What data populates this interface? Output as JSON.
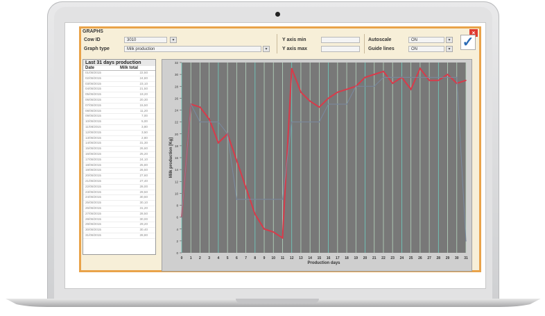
{
  "window": {
    "title": "GRAPHS",
    "close_icon": "close-icon"
  },
  "header": {
    "cow_id_label": "Cow ID",
    "cow_id_value": "3010",
    "graph_type_label": "Graph type",
    "graph_type_value": "Milk production",
    "y_axis_min_label": "Y axis min",
    "y_axis_min_value": "",
    "y_axis_max_label": "Y axis max",
    "y_axis_max_value": "",
    "autoscale_label": "Autoscale",
    "autoscale_value": "ON",
    "guide_lines_label": "Guide lines",
    "guide_lines_value": "ON",
    "confirm_icon": "check-icon"
  },
  "list": {
    "title": "Last 31 days production",
    "col_date": "Date",
    "col_total": "Milk total",
    "rows": [
      {
        "date": "01/08/2015",
        "total": "22,50"
      },
      {
        "date": "02/08/2015",
        "total": "24,80"
      },
      {
        "date": "03/08/2015",
        "total": "23,10"
      },
      {
        "date": "04/08/2015",
        "total": "21,50"
      },
      {
        "date": "05/08/2015",
        "total": "19,20"
      },
      {
        "date": "06/08/2015",
        "total": "20,30"
      },
      {
        "date": "07/08/2015",
        "total": "15,50"
      },
      {
        "date": "08/08/2015",
        "total": "11,20"
      },
      {
        "date": "09/08/2015",
        "total": "7,00"
      },
      {
        "date": "10/08/2015",
        "total": "5,00"
      },
      {
        "date": "11/08/2015",
        "total": "3,80"
      },
      {
        "date": "12/08/2015",
        "total": "3,50"
      },
      {
        "date": "13/08/2015",
        "total": "2,80"
      },
      {
        "date": "14/08/2015",
        "total": "31,30"
      },
      {
        "date": "15/08/2015",
        "total": "26,60"
      },
      {
        "date": "16/08/2015",
        "total": "25,20"
      },
      {
        "date": "17/08/2015",
        "total": "24,10"
      },
      {
        "date": "18/08/2015",
        "total": "25,80"
      },
      {
        "date": "19/08/2015",
        "total": "26,50"
      },
      {
        "date": "20/08/2015",
        "total": "27,60"
      },
      {
        "date": "21/08/2015",
        "total": "27,40"
      },
      {
        "date": "22/08/2015",
        "total": "28,00"
      },
      {
        "date": "23/08/2015",
        "total": "29,50"
      },
      {
        "date": "24/08/2015",
        "total": "30,60"
      },
      {
        "date": "25/08/2015",
        "total": "30,10"
      },
      {
        "date": "26/08/2015",
        "total": "31,20"
      },
      {
        "date": "27/08/2015",
        "total": "28,50"
      },
      {
        "date": "28/08/2015",
        "total": "30,00"
      },
      {
        "date": "29/08/2015",
        "total": "29,20"
      },
      {
        "date": "30/08/2015",
        "total": "30,40"
      },
      {
        "date": "31/08/2015",
        "total": "28,80"
      }
    ]
  },
  "chart_data": {
    "type": "line",
    "xlabel": "Production days",
    "ylabel": "Milk production [Kg]",
    "x": [
      0,
      1,
      2,
      3,
      4,
      5,
      6,
      7,
      8,
      9,
      10,
      11,
      12,
      13,
      14,
      15,
      16,
      17,
      18,
      19,
      20,
      21,
      22,
      23,
      24,
      25,
      26,
      27,
      28,
      29,
      30,
      31
    ],
    "xlim": [
      0,
      31
    ],
    "ylim": [
      0,
      32
    ],
    "yticks": [
      0,
      2,
      4,
      6,
      8,
      10,
      12,
      14,
      16,
      18,
      20,
      22,
      24,
      26,
      28,
      30,
      32
    ],
    "grid": true,
    "series": [
      {
        "values": [
          6.0,
          25.0,
          24.5,
          22.5,
          18.5,
          20.0,
          15.5,
          11.0,
          6.5,
          4.0,
          3.5,
          2.5,
          31.0,
          27.0,
          25.5,
          24.5,
          26.0,
          27.0,
          27.5,
          28.0,
          29.5,
          30.0,
          30.5,
          28.5,
          29.5,
          27.5,
          31.0,
          29.0,
          29.0,
          30.0,
          28.5,
          29.0
        ],
        "color": "#d93a4a"
      },
      {
        "values": [
          6.0,
          25.0,
          22.0,
          22.0,
          22.0,
          20.0,
          9.0,
          9.0,
          9.0,
          9.0,
          9.0,
          9.0,
          22.0,
          22.0,
          22.0,
          22.0,
          25.0,
          25.0,
          25.0,
          28.0,
          28.0,
          28.0,
          29.5,
          29.5,
          29.5,
          29.5,
          29.5,
          29.5,
          29.5,
          29.5,
          29.5,
          2.0
        ],
        "color": "#7a8aa0"
      }
    ],
    "colors": {
      "plot_bg": "#787878",
      "panel_bg": "#cfcfcf",
      "vline_light": "#b8d8c0",
      "vline_teal": "#6fd0c4"
    }
  }
}
